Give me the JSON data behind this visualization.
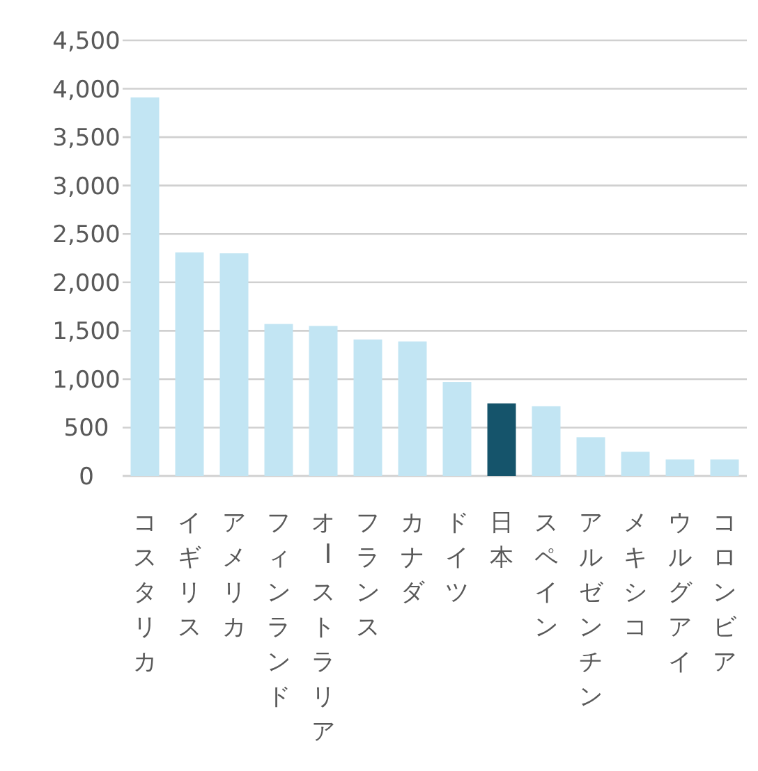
{
  "chart_data": {
    "type": "bar",
    "categories": [
      "コスタリカ",
      "イギリス",
      "アメリカ",
      "フィンランド",
      "オーストラリア",
      "フランス",
      "カナダ",
      "ドイツ",
      "日本",
      "スペイン",
      "アルゼンチン",
      "メキシコ",
      "ウルグアイ",
      "コロンビア"
    ],
    "values": [
      3910,
      2310,
      2300,
      1570,
      1550,
      1410,
      1390,
      970,
      750,
      720,
      400,
      250,
      170,
      170
    ],
    "colors": [
      "#c2e5f3",
      "#c2e5f3",
      "#c2e5f3",
      "#c2e5f3",
      "#c2e5f3",
      "#c2e5f3",
      "#c2e5f3",
      "#c2e5f3",
      "#15546b",
      "#c2e5f3",
      "#c2e5f3",
      "#c2e5f3",
      "#c2e5f3",
      "#c2e5f3"
    ],
    "ylim": [
      0,
      4500
    ],
    "yticks": [
      0,
      500,
      {
        "value": 1000,
        "label": "1,000"
      },
      {
        "value": 1500,
        "label": "1,500"
      },
      {
        "value": 2000,
        "label": "2,000"
      },
      {
        "value": 2500,
        "label": "2,500"
      },
      {
        "value": 3000,
        "label": "3,000"
      },
      {
        "value": 3500,
        "label": "3,500"
      },
      {
        "value": 4000,
        "label": "4,000"
      },
      {
        "value": 4500,
        "label": "4,500"
      }
    ],
    "grid": "y",
    "legend": false
  }
}
